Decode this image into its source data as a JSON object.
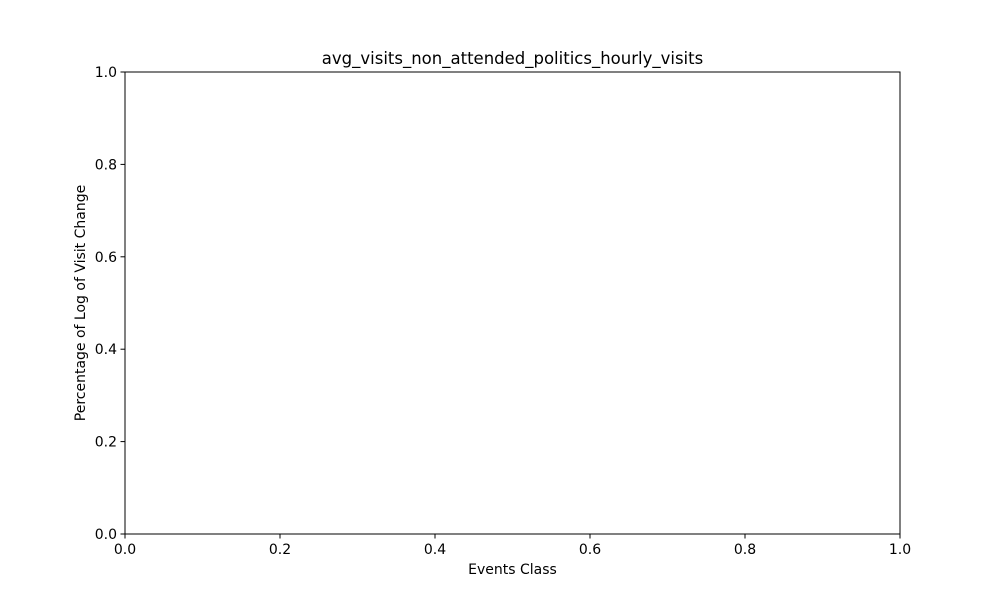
{
  "chart_data": {
    "type": "scatter",
    "title": "avg_visits_non_attended_politics_hourly_visits",
    "xlabel": "Events Class",
    "ylabel": "Percentage of Log of Visit Change",
    "xlim": [
      0.0,
      1.0
    ],
    "ylim": [
      0.0,
      1.0
    ],
    "xticks": [
      "0.0",
      "0.2",
      "0.4",
      "0.6",
      "0.8",
      "1.0"
    ],
    "yticks": [
      "0.0",
      "0.2",
      "0.4",
      "0.6",
      "0.8",
      "1.0"
    ],
    "series": [],
    "grid": false,
    "legend": "none",
    "colors": {
      "axis": "#000000",
      "background": "#ffffff"
    }
  }
}
